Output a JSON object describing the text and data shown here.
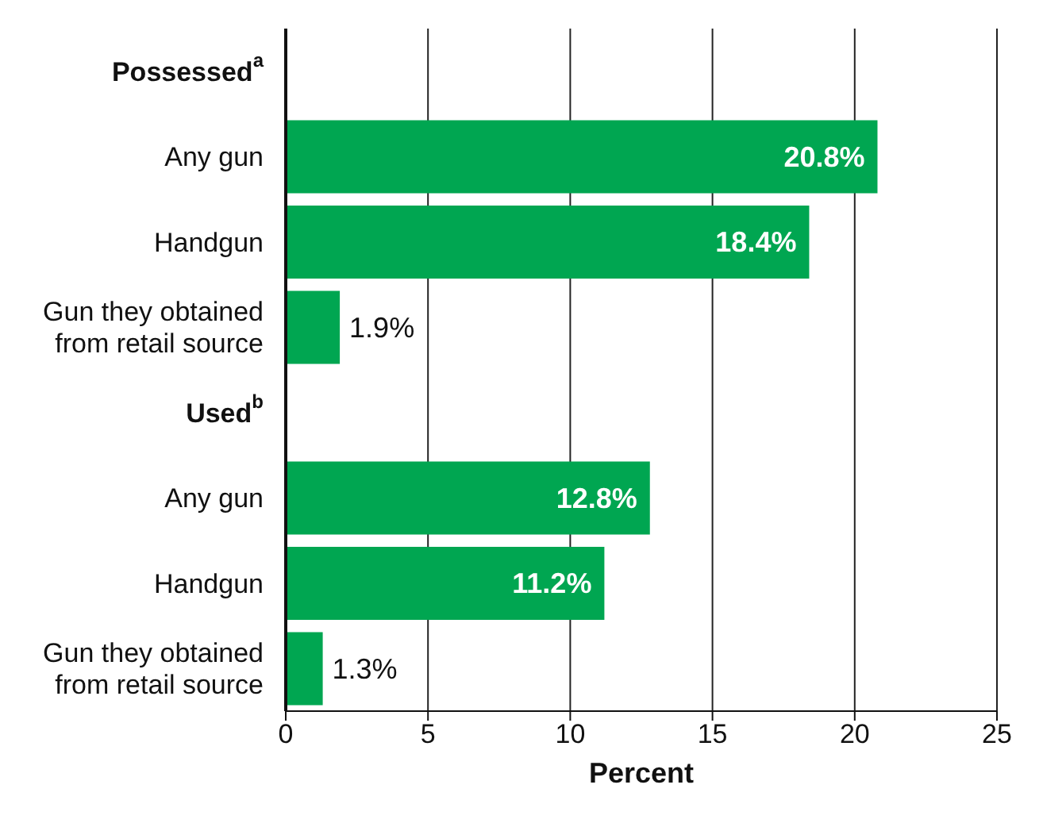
{
  "chart_data": {
    "type": "bar",
    "orientation": "horizontal",
    "xlabel": "Percent",
    "categories": [
      "Possessed$^{a}$",
      "Any gun",
      "Handgun",
      "Gun they obtained from retail source",
      "Used$^{b}$",
      "Any gun",
      "Handgun",
      "Gun they obtained from retail source"
    ],
    "values": [
      null,
      20.8,
      18.4,
      1.9,
      null,
      12.8,
      11.2,
      1.3
    ],
    "value_labels": [
      null,
      "20.8%",
      "18.4%",
      "1.9%",
      null,
      "12.8%",
      "11.2%",
      "1.3%"
    ],
    "color": "#00a651",
    "xlim": [
      0,
      25
    ],
    "xticks": [
      0,
      5,
      10,
      15,
      20,
      25
    ],
    "grid": "x"
  }
}
